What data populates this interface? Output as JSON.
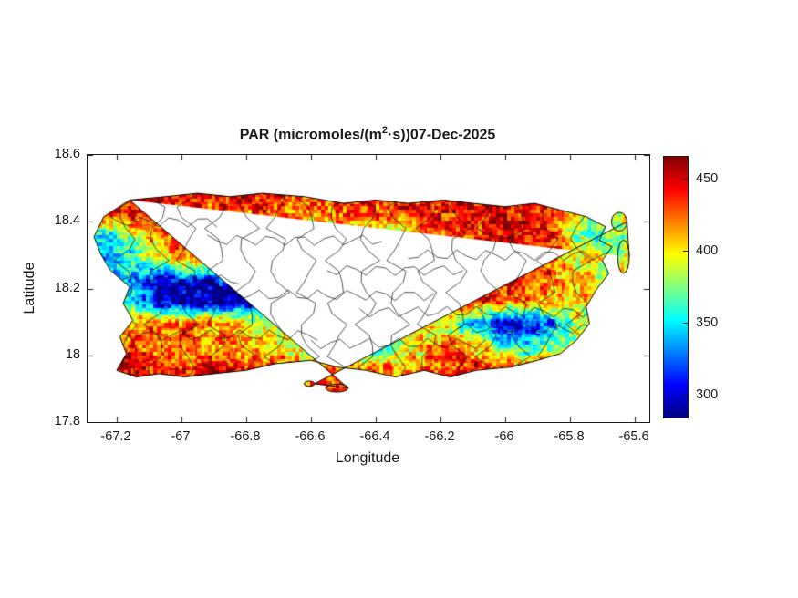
{
  "title": {
    "prefix": "PAR (micromoles/(m",
    "sup": "2",
    "suffix": "·s))07-Dec-2025"
  },
  "axes": {
    "xlabel": "Longitude",
    "ylabel": "Latitude",
    "xticks": [
      {
        "value": -67.2,
        "label": "-67.2"
      },
      {
        "value": -67.0,
        "label": "-67"
      },
      {
        "value": -66.8,
        "label": "-66.8"
      },
      {
        "value": -66.6,
        "label": "-66.6"
      },
      {
        "value": -66.4,
        "label": "-66.4"
      },
      {
        "value": -66.2,
        "label": "-66.2"
      },
      {
        "value": -66.0,
        "label": "-66"
      },
      {
        "value": -65.8,
        "label": "-65.8"
      },
      {
        "value": -65.6,
        "label": "-65.6"
      }
    ],
    "yticks": [
      {
        "value": 17.8,
        "label": "17.8"
      },
      {
        "value": 18.0,
        "label": "18"
      },
      {
        "value": 18.2,
        "label": "18.2"
      },
      {
        "value": 18.4,
        "label": "18.4"
      },
      {
        "value": 18.6,
        "label": "18.6"
      }
    ]
  },
  "colorbar": {
    "ticks": [
      {
        "value": 300,
        "label": "300"
      },
      {
        "value": 350,
        "label": "350"
      },
      {
        "value": 400,
        "label": "400"
      },
      {
        "value": 450,
        "label": "450"
      }
    ]
  },
  "chart_data": {
    "type": "heatmap",
    "title": "PAR (micromoles/(m^2·s)) 07-Dec-2025",
    "variable": "PAR",
    "units": "micromoles/(m^2·s)",
    "date": "07-Dec-2025",
    "region": "Puerto Rico",
    "xlabel": "Longitude",
    "ylabel": "Latitude",
    "xlim": [
      -67.29,
      -65.555
    ],
    "ylim": [
      17.8,
      18.6
    ],
    "xticks": [
      -67.2,
      -67.0,
      -66.8,
      -66.6,
      -66.4,
      -66.2,
      -66.0,
      -65.8,
      -65.6
    ],
    "yticks": [
      17.8,
      18.0,
      18.2,
      18.4,
      18.6
    ],
    "clim": [
      285,
      466
    ],
    "colorbar_ticks": [
      300,
      350,
      400,
      450
    ],
    "colormap": "jet",
    "colormap_stops": [
      [
        0.0,
        0,
        0,
        131
      ],
      [
        0.125,
        0,
        0,
        255
      ],
      [
        0.375,
        0,
        255,
        255
      ],
      [
        0.625,
        255,
        255,
        0
      ],
      [
        0.875,
        255,
        0,
        0
      ],
      [
        1.0,
        128,
        0,
        0
      ]
    ],
    "grid": {
      "lon_start": -67.3,
      "lon_step": 0.076087,
      "lat_start": 18.55,
      "lat_step": -0.065,
      "ncols": 24,
      "nrows": 11,
      "values": [
        [
          435,
          445,
          450,
          450,
          440,
          435,
          445,
          450,
          440,
          425,
          420,
          430,
          440,
          445,
          450,
          440,
          445,
          450,
          445,
          435,
          425,
          415,
          420,
          420
        ],
        [
          430,
          445,
          455,
          450,
          440,
          435,
          445,
          450,
          440,
          425,
          420,
          430,
          440,
          445,
          450,
          440,
          445,
          450,
          445,
          435,
          425,
          415,
          420,
          420
        ],
        [
          420,
          430,
          445,
          450,
          445,
          430,
          420,
          430,
          425,
          415,
          420,
          430,
          420,
          430,
          440,
          445,
          440,
          450,
          445,
          430,
          400,
          380,
          390,
          395
        ],
        [
          360,
          350,
          380,
          420,
          430,
          420,
          400,
          410,
          420,
          400,
          395,
          405,
          400,
          395,
          420,
          430,
          440,
          450,
          455,
          440,
          380,
          360,
          370,
          380
        ],
        [
          340,
          335,
          360,
          400,
          420,
          430,
          410,
          390,
          395,
          390,
          395,
          400,
          420,
          430,
          435,
          440,
          450,
          455,
          450,
          430,
          400,
          390,
          395,
          400
        ],
        [
          380,
          360,
          330,
          310,
          305,
          300,
          310,
          315,
          330,
          360,
          380,
          390,
          400,
          420,
          430,
          440,
          445,
          450,
          430,
          420,
          410,
          400,
          395,
          400
        ],
        [
          400,
          390,
          350,
          300,
          290,
          288,
          292,
          300,
          320,
          340,
          370,
          390,
          395,
          400,
          420,
          430,
          435,
          425,
          420,
          410,
          405,
          400,
          395,
          400
        ],
        [
          430,
          425,
          420,
          420,
          430,
          430,
          410,
          390,
          370,
          360,
          340,
          330,
          360,
          390,
          400,
          380,
          330,
          300,
          310,
          330,
          380,
          390,
          395,
          400
        ],
        [
          440,
          440,
          435,
          425,
          420,
          415,
          410,
          400,
          390,
          380,
          370,
          350,
          340,
          380,
          410,
          420,
          410,
          350,
          340,
          360,
          395,
          400,
          400,
          405
        ],
        [
          450,
          450,
          445,
          440,
          435,
          440,
          445,
          440,
          430,
          425,
          420,
          410,
          415,
          420,
          430,
          435,
          440,
          435,
          430,
          425,
          420,
          415,
          410,
          410
        ],
        [
          445,
          450,
          450,
          445,
          440,
          440,
          445,
          440,
          435,
          430,
          425,
          420,
          420,
          425,
          430,
          435,
          440,
          435,
          430,
          425,
          420,
          415,
          410,
          410
        ]
      ]
    },
    "island_outline": [
      [
        -67.16,
        18.465
      ],
      [
        -67.05,
        18.475
      ],
      [
        -66.95,
        18.485
      ],
      [
        -66.85,
        18.475
      ],
      [
        -66.75,
        18.485
      ],
      [
        -66.62,
        18.475
      ],
      [
        -66.5,
        18.455
      ],
      [
        -66.4,
        18.465
      ],
      [
        -66.3,
        18.455
      ],
      [
        -66.19,
        18.465
      ],
      [
        -66.1,
        18.455
      ],
      [
        -66.0,
        18.445
      ],
      [
        -65.91,
        18.455
      ],
      [
        -65.83,
        18.435
      ],
      [
        -65.75,
        18.415
      ],
      [
        -65.69,
        18.385
      ],
      [
        -65.71,
        18.345
      ],
      [
        -65.67,
        18.325
      ],
      [
        -65.7,
        18.285
      ],
      [
        -65.68,
        18.245
      ],
      [
        -65.72,
        18.195
      ],
      [
        -65.75,
        18.145
      ],
      [
        -65.74,
        18.095
      ],
      [
        -65.78,
        18.045
      ],
      [
        -65.83,
        18.005
      ],
      [
        -65.9,
        17.985
      ],
      [
        -65.98,
        17.965
      ],
      [
        -66.09,
        17.955
      ],
      [
        -66.17,
        17.935
      ],
      [
        -66.25,
        17.955
      ],
      [
        -66.34,
        17.935
      ],
      [
        -66.43,
        17.955
      ],
      [
        -66.52,
        17.965
      ],
      [
        -66.6,
        17.985
      ],
      [
        -66.71,
        17.975
      ],
      [
        -66.8,
        17.955
      ],
      [
        -66.9,
        17.945
      ],
      [
        -66.99,
        17.935
      ],
      [
        -67.07,
        17.945
      ],
      [
        -67.14,
        17.935
      ],
      [
        -67.2,
        17.955
      ],
      [
        -67.17,
        18.005
      ],
      [
        -67.19,
        18.055
      ],
      [
        -67.15,
        18.105
      ],
      [
        -67.18,
        18.155
      ],
      [
        -67.16,
        18.205
      ],
      [
        -67.22,
        18.255
      ],
      [
        -67.25,
        18.305
      ],
      [
        -67.27,
        18.355
      ],
      [
        -67.24,
        18.415
      ]
    ],
    "islets": [
      {
        "cx": -66.52,
        "cy": 17.902,
        "rx": 0.035,
        "ry": 0.012
      },
      {
        "cx": -66.605,
        "cy": 17.915,
        "rx": 0.016,
        "ry": 0.008
      },
      {
        "cx": -65.648,
        "cy": 18.4,
        "rx": 0.024,
        "ry": 0.028
      },
      {
        "cx": -65.635,
        "cy": 18.295,
        "rx": 0.018,
        "ry": 0.05
      }
    ],
    "show_municipality_boundaries": true
  }
}
